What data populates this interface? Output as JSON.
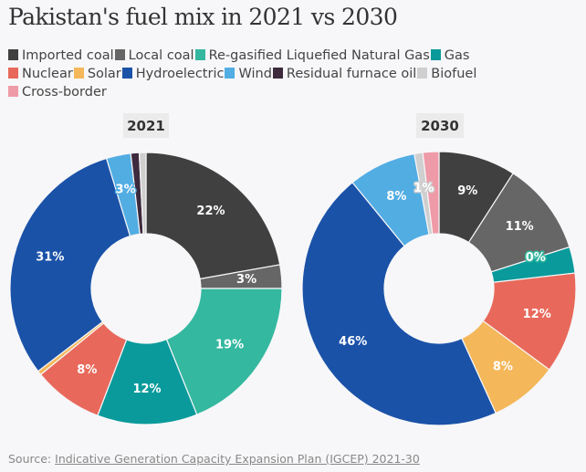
{
  "title": "Pakistan's fuel mix in 2021 vs 2030",
  "legend": [
    {
      "label": "Imported coal",
      "color": "#404040"
    },
    {
      "label": "Local coal",
      "color": "#666666"
    },
    {
      "label": "Re-gasified Liquefied Natural Gas",
      "color": "#34b8a0"
    },
    {
      "label": "Gas",
      "color": "#0a9a9b"
    },
    {
      "label": "Nuclear",
      "color": "#e8695b"
    },
    {
      "label": "Solar",
      "color": "#f4b75a"
    },
    {
      "label": "Hydroelectric",
      "color": "#1a52a8"
    },
    {
      "label": "Wind",
      "color": "#52ade3"
    },
    {
      "label": "Residual furnace oil",
      "color": "#3d2a3d"
    },
    {
      "label": "Biofuel",
      "color": "#cfcfcf"
    },
    {
      "label": "Cross-border",
      "color": "#ef9aa7"
    }
  ],
  "source": {
    "prefix": "Source:",
    "link_text": "Indicative Generation Capacity Expansion Plan (IGCEP) 2021-30"
  },
  "chart_data": [
    {
      "type": "pie",
      "donut": true,
      "title": "2021",
      "categories": [
        "Imported coal",
        "Local coal",
        "Re-gasified Liquefied Natural Gas",
        "Gas",
        "Nuclear",
        "Solar",
        "Hydroelectric",
        "Wind",
        "Residual furnace oil",
        "Biofuel",
        "Cross-border"
      ],
      "values": [
        22.2,
        2.8,
        18.9,
        11.9,
        8.3,
        0.5,
        30.7,
        2.9,
        1.0,
        0.8,
        0
      ],
      "labels": [
        "22%",
        "3%",
        "19%",
        "12%",
        "8%",
        "",
        "31%",
        "3%",
        "",
        "",
        ""
      ]
    },
    {
      "type": "pie",
      "donut": true,
      "title": "2030",
      "categories": [
        "Imported coal",
        "Local coal",
        "Re-gasified Liquefied Natural Gas",
        "Gas",
        "Nuclear",
        "Solar",
        "Hydroelectric",
        "Wind",
        "Residual furnace oil",
        "Biofuel",
        "Cross-border"
      ],
      "values": [
        9.1,
        11.0,
        0,
        3.1,
        11.9,
        8.1,
        45.9,
        8.0,
        0,
        1.0,
        1.9
      ],
      "labels": [
        "9%",
        "11%",
        "0%",
        "",
        "12%",
        "8%",
        "46%",
        "8%",
        "",
        "1%",
        ""
      ]
    }
  ]
}
